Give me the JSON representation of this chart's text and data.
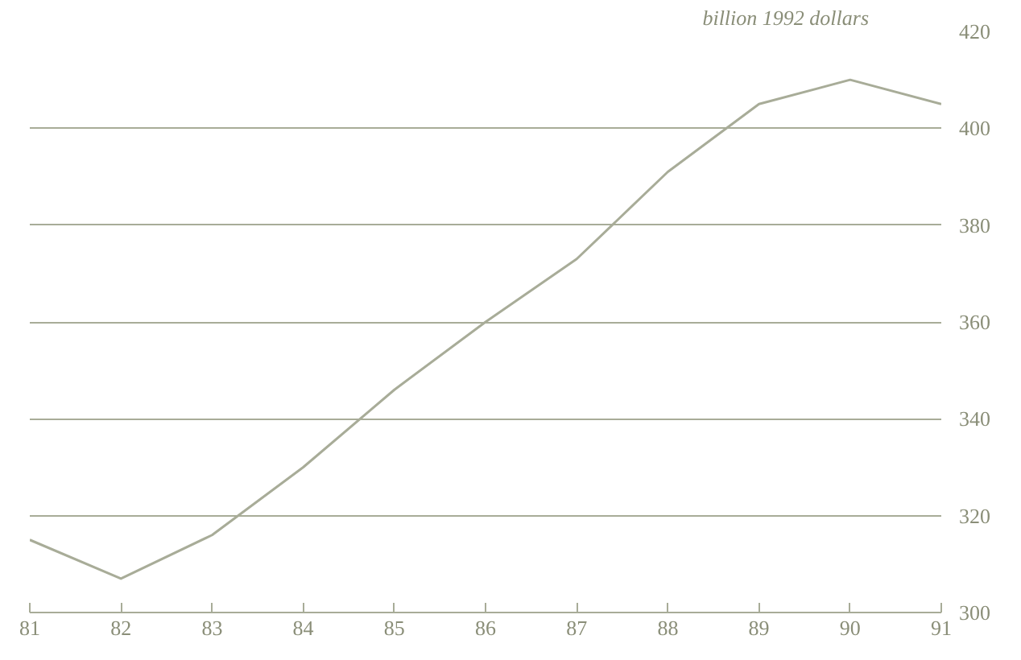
{
  "chart_data": {
    "type": "line",
    "ylabel": "billion 1992 dollars",
    "x": [
      81,
      82,
      83,
      84,
      85,
      86,
      87,
      88,
      89,
      90,
      91
    ],
    "series": [
      {
        "color": "#a8ac98",
        "values": [
          315,
          307,
          316,
          330,
          346,
          360,
          373,
          391,
          405,
          410,
          405
        ]
      }
    ],
    "xlim": [
      81,
      91
    ],
    "xticks": [
      81,
      82,
      83,
      84,
      85,
      86,
      87,
      88,
      89,
      90,
      91
    ],
    "ylim": [
      300,
      420
    ],
    "yticks": [
      300,
      320,
      340,
      360,
      380,
      400,
      420
    ],
    "grid": "y",
    "marker": "none",
    "line_style": "solid"
  }
}
